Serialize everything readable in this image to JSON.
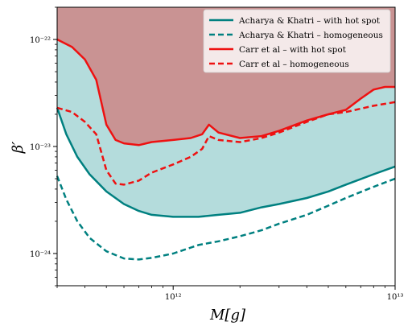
{
  "chart_data": {
    "type": "line",
    "title": "",
    "xlabel": "M[g]",
    "ylabel": "β′",
    "xscale": "log",
    "yscale": "log",
    "xlim": [
      300000000000.0,
      10000000000000.0
    ],
    "ylim": [
      5e-25,
      2e-22
    ],
    "grid": false,
    "legend_position": "top-right",
    "x_ticks": [
      {
        "value": 1000000000000.0,
        "label": "10^12"
      },
      {
        "value": 10000000000000.0,
        "label": "10^13"
      }
    ],
    "y_ticks": [
      {
        "value": 1e-22,
        "label": "10^−22"
      },
      {
        "value": 1e-23,
        "label": "10^−23"
      },
      {
        "value": 1e-24,
        "label": "10^−24"
      }
    ],
    "series": [
      {
        "name": "Acharya & Khatri – with hot spot",
        "color": "#008080",
        "style": "solid",
        "fill_above": "#b4dcdc",
        "points": [
          [
            300000000000.0,
            2.3e-23
          ],
          [
            330000000000.0,
            1.3e-23
          ],
          [
            370000000000.0,
            8e-24
          ],
          [
            420000000000.0,
            5.5e-24
          ],
          [
            500000000000.0,
            3.8e-24
          ],
          [
            600000000000.0,
            2.9e-24
          ],
          [
            700000000000.0,
            2.5e-24
          ],
          [
            800000000000.0,
            2.3e-24
          ],
          [
            1000000000000.0,
            2.2e-24
          ],
          [
            1300000000000.0,
            2.2e-24
          ],
          [
            1600000000000.0,
            2.3e-24
          ],
          [
            2000000000000.0,
            2.4e-24
          ],
          [
            2500000000000.0,
            2.7e-24
          ],
          [
            3000000000000.0,
            2.9e-24
          ],
          [
            4000000000000.0,
            3.3e-24
          ],
          [
            5000000000000.0,
            3.8e-24
          ],
          [
            6000000000000.0,
            4.4e-24
          ],
          [
            8000000000000.0,
            5.5e-24
          ],
          [
            10000000000000.0,
            6.5e-24
          ]
        ]
      },
      {
        "name": "Acharya & Khatri – homogeneous",
        "color": "#008080",
        "style": "dashed",
        "points": [
          [
            300000000000.0,
            5.3e-24
          ],
          [
            330000000000.0,
            3.2e-24
          ],
          [
            370000000000.0,
            2e-24
          ],
          [
            420000000000.0,
            1.4e-24
          ],
          [
            500000000000.0,
            1.05e-24
          ],
          [
            600000000000.0,
            9e-25
          ],
          [
            700000000000.0,
            8.8e-25
          ],
          [
            800000000000.0,
            9.1e-25
          ],
          [
            1000000000000.0,
            1e-24
          ],
          [
            1300000000000.0,
            1.2e-24
          ],
          [
            1600000000000.0,
            1.3e-24
          ],
          [
            2000000000000.0,
            1.45e-24
          ],
          [
            2500000000000.0,
            1.65e-24
          ],
          [
            3000000000000.0,
            1.9e-24
          ],
          [
            4000000000000.0,
            2.3e-24
          ],
          [
            5000000000000.0,
            2.8e-24
          ],
          [
            6000000000000.0,
            3.3e-24
          ],
          [
            8000000000000.0,
            4.2e-24
          ],
          [
            10000000000000.0,
            5e-24
          ]
        ]
      },
      {
        "name": "Carr et al – with hot spot",
        "color": "#ee1111",
        "style": "solid",
        "fill_above": "#c99393",
        "points": [
          [
            300000000000.0,
            1e-22
          ],
          [
            350000000000.0,
            8.5e-23
          ],
          [
            400000000000.0,
            6.5e-23
          ],
          [
            450000000000.0,
            4.2e-23
          ],
          [
            500000000000.0,
            1.6e-23
          ],
          [
            550000000000.0,
            1.15e-23
          ],
          [
            600000000000.0,
            1.07e-23
          ],
          [
            700000000000.0,
            1.03e-23
          ],
          [
            800000000000.0,
            1.1e-23
          ],
          [
            1000000000000.0,
            1.15e-23
          ],
          [
            1200000000000.0,
            1.2e-23
          ],
          [
            1350000000000.0,
            1.3e-23
          ],
          [
            1450000000000.0,
            1.6e-23
          ],
          [
            1600000000000.0,
            1.35e-23
          ],
          [
            2000000000000.0,
            1.2e-23
          ],
          [
            2500000000000.0,
            1.25e-23
          ],
          [
            3000000000000.0,
            1.4e-23
          ],
          [
            4000000000000.0,
            1.75e-23
          ],
          [
            5000000000000.0,
            2e-23
          ],
          [
            6000000000000.0,
            2.2e-23
          ],
          [
            7000000000000.0,
            2.8e-23
          ],
          [
            8000000000000.0,
            3.4e-23
          ],
          [
            9000000000000.0,
            3.6e-23
          ],
          [
            10000000000000.0,
            3.6e-23
          ]
        ]
      },
      {
        "name": "Carr et al – homogeneous",
        "color": "#ee1111",
        "style": "dashed",
        "points": [
          [
            300000000000.0,
            2.3e-23
          ],
          [
            350000000000.0,
            2.1e-23
          ],
          [
            400000000000.0,
            1.7e-23
          ],
          [
            450000000000.0,
            1.3e-23
          ],
          [
            500000000000.0,
            6e-24
          ],
          [
            550000000000.0,
            4.5e-24
          ],
          [
            600000000000.0,
            4.4e-24
          ],
          [
            700000000000.0,
            4.8e-24
          ],
          [
            800000000000.0,
            5.7e-24
          ],
          [
            1000000000000.0,
            6.8e-24
          ],
          [
            1200000000000.0,
            8e-24
          ],
          [
            1350000000000.0,
            9.5e-24
          ],
          [
            1450000000000.0,
            1.25e-23
          ],
          [
            1600000000000.0,
            1.15e-23
          ],
          [
            2000000000000.0,
            1.1e-23
          ],
          [
            2500000000000.0,
            1.2e-23
          ],
          [
            3000000000000.0,
            1.35e-23
          ],
          [
            4000000000000.0,
            1.7e-23
          ],
          [
            5000000000000.0,
            2e-23
          ],
          [
            6000000000000.0,
            2.1e-23
          ],
          [
            8000000000000.0,
            2.4e-23
          ],
          [
            10000000000000.0,
            2.6e-23
          ]
        ]
      }
    ]
  }
}
